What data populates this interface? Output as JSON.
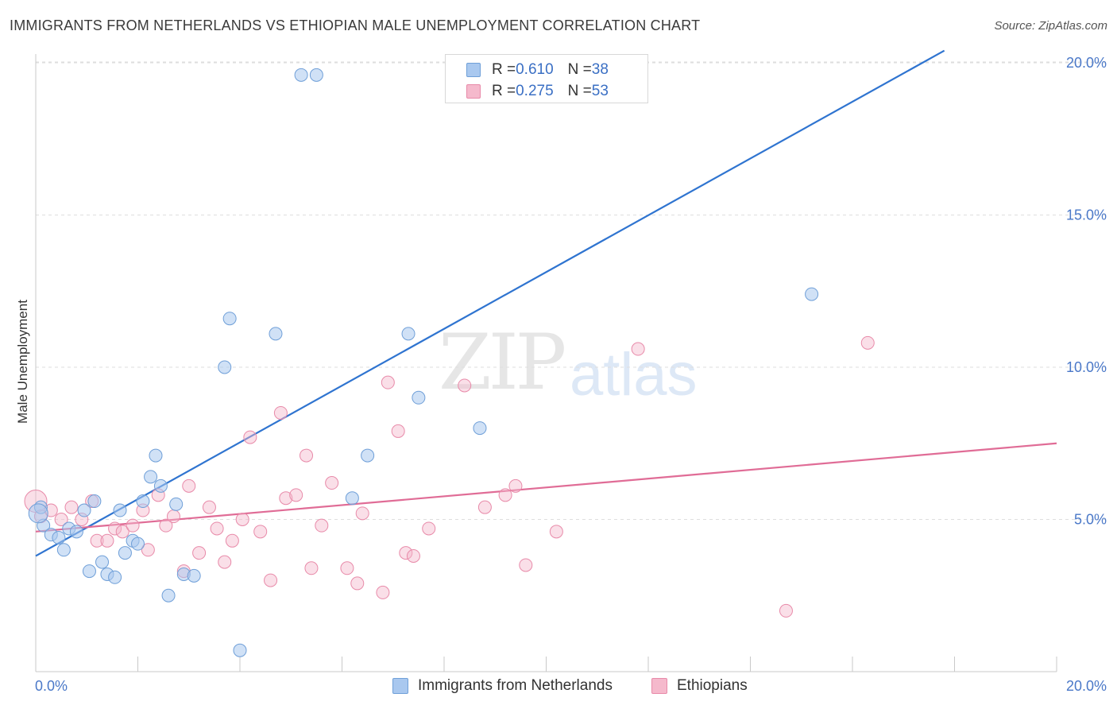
{
  "header": {
    "title": "IMMIGRANTS FROM NETHERLANDS VS ETHIOPIAN MALE UNEMPLOYMENT CORRELATION CHART",
    "source": "Source: ZipAtlas.com"
  },
  "watermark": {
    "zip": "ZIP",
    "atlas": "atlas"
  },
  "legend_top": {
    "rows": [
      {
        "r_label": "R = ",
        "r_value": "0.610",
        "n_label": "N = ",
        "n_value": "38"
      },
      {
        "r_label": "R = ",
        "r_value": "0.275",
        "n_label": "N = ",
        "n_value": "53"
      }
    ]
  },
  "legend_bottom": {
    "items": [
      {
        "label": "Immigrants from Netherlands"
      },
      {
        "label": "Ethiopians"
      }
    ]
  },
  "colors": {
    "blue_fill": "#a9c8ef",
    "blue_stroke": "#6f9fd8",
    "blue_line": "#2f74d0",
    "pink_fill": "#f5b9cc",
    "pink_stroke": "#e88aa9",
    "pink_line": "#e06c96",
    "grid": "#dedede",
    "tick_label": "#4a78c8"
  },
  "chart_data": {
    "type": "scatter",
    "title": "IMMIGRANTS FROM NETHERLANDS VS ETHIOPIAN MALE UNEMPLOYMENT CORRELATION CHART",
    "ylabel": "Male Unemployment",
    "xlabel": "",
    "xlim": [
      0,
      20
    ],
    "ylim": [
      0,
      20.5
    ],
    "x_tick_labels": [
      "0.0%",
      "20.0%"
    ],
    "y_ticks": [
      5,
      10,
      15,
      20
    ],
    "y_tick_labels": [
      "5.0%",
      "10.0%",
      "15.0%",
      "20.0%"
    ],
    "grid": true,
    "legend_position": "top-center",
    "series": [
      {
        "name": "Immigrants from Netherlands",
        "color": "#a9c8ef",
        "points": [
          [
            0.1,
            5.4
          ],
          [
            0.15,
            4.8
          ],
          [
            0.3,
            4.5
          ],
          [
            0.45,
            4.4
          ],
          [
            0.55,
            4.0
          ],
          [
            0.65,
            4.7
          ],
          [
            0.8,
            4.6
          ],
          [
            0.95,
            5.3
          ],
          [
            1.05,
            3.3
          ],
          [
            1.15,
            5.6
          ],
          [
            1.3,
            3.6
          ],
          [
            1.4,
            3.2
          ],
          [
            1.55,
            3.1
          ],
          [
            1.65,
            5.3
          ],
          [
            1.75,
            3.9
          ],
          [
            1.9,
            4.3
          ],
          [
            2.0,
            4.2
          ],
          [
            2.1,
            5.6
          ],
          [
            2.25,
            6.4
          ],
          [
            2.35,
            7.1
          ],
          [
            2.45,
            6.1
          ],
          [
            2.6,
            2.5
          ],
          [
            2.75,
            5.5
          ],
          [
            2.9,
            3.2
          ],
          [
            3.1,
            3.15
          ],
          [
            3.7,
            10.0
          ],
          [
            3.8,
            11.6
          ],
          [
            4.0,
            0.7
          ],
          [
            4.7,
            11.1
          ],
          [
            5.2,
            19.6
          ],
          [
            5.5,
            19.6
          ],
          [
            6.2,
            5.7
          ],
          [
            6.5,
            7.1
          ],
          [
            7.3,
            11.1
          ],
          [
            7.5,
            9.0
          ],
          [
            8.7,
            8.0
          ],
          [
            15.2,
            12.4
          ],
          [
            0.05,
            5.2
          ]
        ]
      },
      {
        "name": "Ethiopians",
        "color": "#f5b9cc",
        "points": [
          [
            0.0,
            5.6
          ],
          [
            0.1,
            5.1
          ],
          [
            0.3,
            5.3
          ],
          [
            0.5,
            5.0
          ],
          [
            0.7,
            5.4
          ],
          [
            0.9,
            5.0
          ],
          [
            1.1,
            5.6
          ],
          [
            1.2,
            4.3
          ],
          [
            1.4,
            4.3
          ],
          [
            1.55,
            4.7
          ],
          [
            1.7,
            4.6
          ],
          [
            1.9,
            4.8
          ],
          [
            2.1,
            5.3
          ],
          [
            2.2,
            4.0
          ],
          [
            2.4,
            5.8
          ],
          [
            2.55,
            4.8
          ],
          [
            2.7,
            5.1
          ],
          [
            2.9,
            3.3
          ],
          [
            3.0,
            6.1
          ],
          [
            3.2,
            3.9
          ],
          [
            3.4,
            5.4
          ],
          [
            3.55,
            4.7
          ],
          [
            3.7,
            3.6
          ],
          [
            3.85,
            4.3
          ],
          [
            4.05,
            5.0
          ],
          [
            4.2,
            7.7
          ],
          [
            4.4,
            4.6
          ],
          [
            4.6,
            3.0
          ],
          [
            4.8,
            8.5
          ],
          [
            4.9,
            5.7
          ],
          [
            5.1,
            5.8
          ],
          [
            5.3,
            7.1
          ],
          [
            5.4,
            3.4
          ],
          [
            5.6,
            4.8
          ],
          [
            5.8,
            6.2
          ],
          [
            6.1,
            3.4
          ],
          [
            6.3,
            2.9
          ],
          [
            6.4,
            5.2
          ],
          [
            6.8,
            2.6
          ],
          [
            6.9,
            9.5
          ],
          [
            7.1,
            7.9
          ],
          [
            7.25,
            3.9
          ],
          [
            7.4,
            3.8
          ],
          [
            7.7,
            4.7
          ],
          [
            8.4,
            9.4
          ],
          [
            8.8,
            5.4
          ],
          [
            9.2,
            5.8
          ],
          [
            9.4,
            6.1
          ],
          [
            9.6,
            3.5
          ],
          [
            10.2,
            4.6
          ],
          [
            11.8,
            10.6
          ],
          [
            14.7,
            2.0
          ],
          [
            16.3,
            10.8
          ]
        ]
      }
    ],
    "trend_lines": [
      {
        "series": "Immigrants from Netherlands",
        "x": [
          0.0,
          17.8
        ],
        "y": [
          3.8,
          20.4
        ]
      },
      {
        "series": "Ethiopians",
        "x": [
          0.0,
          20.0
        ],
        "y": [
          4.6,
          7.5
        ]
      }
    ]
  }
}
